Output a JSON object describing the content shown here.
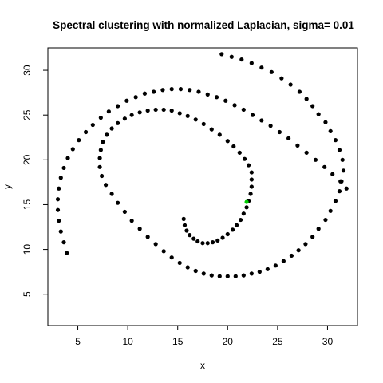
{
  "chart_data": {
    "type": "scatter",
    "title": "Spectral clustering with normalized Laplacian, sigma= 0.01",
    "xlabel": "x",
    "ylabel": "y",
    "xlim": [
      2.0,
      33.0
    ],
    "ylim": [
      1.5,
      32.5
    ],
    "xticks": [
      5,
      10,
      15,
      20,
      25,
      30
    ],
    "yticks": [
      5,
      10,
      15,
      20,
      25,
      30
    ],
    "grid": false,
    "legend": "none",
    "colors": {
      "cluster_1": "#000000",
      "cluster_2": "#00cc00"
    },
    "series": [
      {
        "color": "#000000",
        "spirals": [
          {
            "note_type": "outer",
            "x": [
              19.4,
              20.4,
              21.4,
              22.4,
              23.4,
              24.4,
              25.4,
              26.3,
              27.2,
              27.9,
              28.5,
              29.1,
              29.8,
              30.3,
              30.8,
              31.2,
              31.5,
              31.6,
              31.4,
              31.2,
              30.8,
              30.3,
              29.8,
              29.1,
              28.5,
              27.8,
              27.1,
              26.4,
              25.6,
              24.8,
              24.0,
              23.2,
              22.4,
              21.6,
              20.8,
              20.0,
              19.2,
              18.4,
              17.6,
              16.8,
              16.0,
              15.2,
              14.4,
              13.6,
              12.8,
              12.0,
              11.2,
              10.4,
              9.7,
              9.0,
              8.4,
              7.8,
              7.4,
              7.2,
              7.2,
              7.3,
              7.5,
              7.9,
              8.4,
              9.0,
              9.7,
              10.4,
              11.2,
              12.0,
              12.8,
              13.6,
              14.4,
              15.2,
              16.0,
              16.8,
              17.6,
              18.4,
              19.2,
              20.0,
              20.6,
              21.2,
              21.7,
              22.1,
              22.4
            ],
            "y": [
              31.8,
              31.5,
              31.2,
              30.8,
              30.3,
              29.8,
              29.1,
              28.4,
              27.6,
              26.8,
              26.0,
              25.1,
              24.2,
              23.2,
              22.2,
              21.1,
              20.0,
              18.8,
              17.6,
              16.5,
              15.4,
              14.3,
              13.3,
              12.3,
              11.4,
              10.6,
              9.9,
              9.3,
              8.7,
              8.2,
              7.8,
              7.5,
              7.3,
              7.1,
              7.0,
              7.0,
              7.0,
              7.1,
              7.3,
              7.6,
              8.0,
              8.5,
              9.1,
              9.8,
              10.6,
              11.4,
              12.3,
              13.2,
              14.2,
              15.2,
              16.2,
              17.2,
              18.2,
              19.2,
              20.2,
              21.1,
              22.0,
              22.8,
              23.5,
              24.1,
              24.6,
              25.0,
              25.3,
              25.5,
              25.6,
              25.6,
              25.5,
              25.2,
              24.9,
              24.5,
              24.0,
              23.4,
              22.8,
              22.1,
              21.5,
              20.8,
              20.1,
              19.4,
              18.6
            ]
          },
          {
            "note_type": "inner",
            "x": [
              22.4,
              22.4,
              22.3,
              22.1,
              21.9,
              21.6,
              21.3,
              20.9,
              20.5,
              20.0,
              19.5,
              19.0,
              18.5,
              18.0,
              17.5,
              17.0,
              16.6,
              16.2,
              15.9,
              15.7,
              15.6
            ],
            "y": [
              17.8,
              17.0,
              16.2,
              15.4,
              14.7,
              14.0,
              13.3,
              12.7,
              12.2,
              11.7,
              11.3,
              11.0,
              10.8,
              10.7,
              10.7,
              10.9,
              11.2,
              11.6,
              12.1,
              12.7,
              13.4
            ]
          },
          {
            "note_type": "outer2",
            "x": [
              3.9,
              3.6,
              3.3,
              3.1,
              3.0,
              3.0,
              3.1,
              3.3,
              3.6,
              4.0,
              4.5,
              5.1,
              5.8,
              6.5,
              7.3,
              8.1,
              9.0,
              9.9,
              10.8,
              11.7,
              12.6,
              13.5,
              14.4,
              15.3,
              16.2,
              17.1,
              18.0,
              18.9,
              19.8,
              20.7,
              21.6,
              22.5,
              23.4,
              24.3,
              25.2,
              26.1,
              27.0,
              27.9,
              28.8,
              29.7,
              30.5,
              31.3,
              31.9
            ],
            "y": [
              9.6,
              10.8,
              12.0,
              13.2,
              14.4,
              15.6,
              16.8,
              18.0,
              19.1,
              20.2,
              21.2,
              22.2,
              23.1,
              23.9,
              24.7,
              25.4,
              26.0,
              26.6,
              27.0,
              27.4,
              27.6,
              27.8,
              27.9,
              27.9,
              27.8,
              27.6,
              27.3,
              27.0,
              26.6,
              26.1,
              25.6,
              25.0,
              24.4,
              23.8,
              23.1,
              22.4,
              21.6,
              20.8,
              20.0,
              19.2,
              18.4,
              17.6,
              16.8
            ]
          }
        ]
      }
    ]
  }
}
